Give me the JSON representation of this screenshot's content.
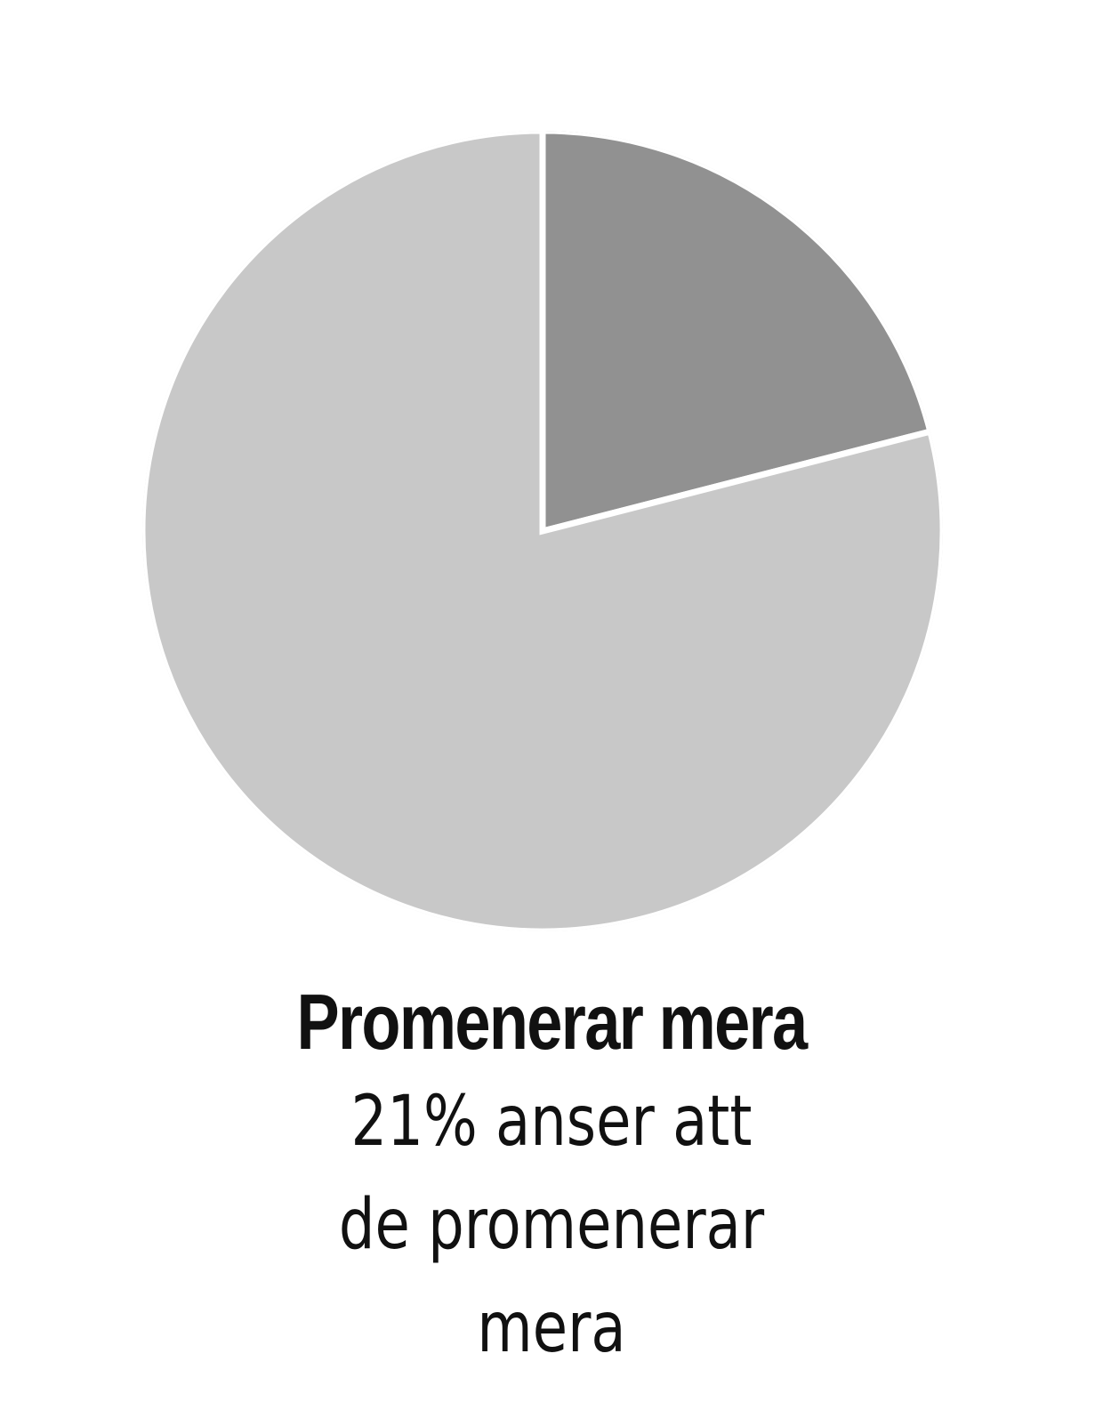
{
  "chart_data": {
    "type": "pie",
    "slices": [
      {
        "label": "Promenerar mera",
        "value": 21,
        "color": "#919191"
      },
      {
        "label": "",
        "value": 79,
        "color": "#c8c8c8"
      }
    ],
    "start_angle": "12 o'clock, clockwise",
    "separator_color": "#ffffff"
  },
  "caption": {
    "title": "Promenerar mera",
    "lines": [
      "21% anser att",
      "de promenerar",
      "mera"
    ]
  }
}
